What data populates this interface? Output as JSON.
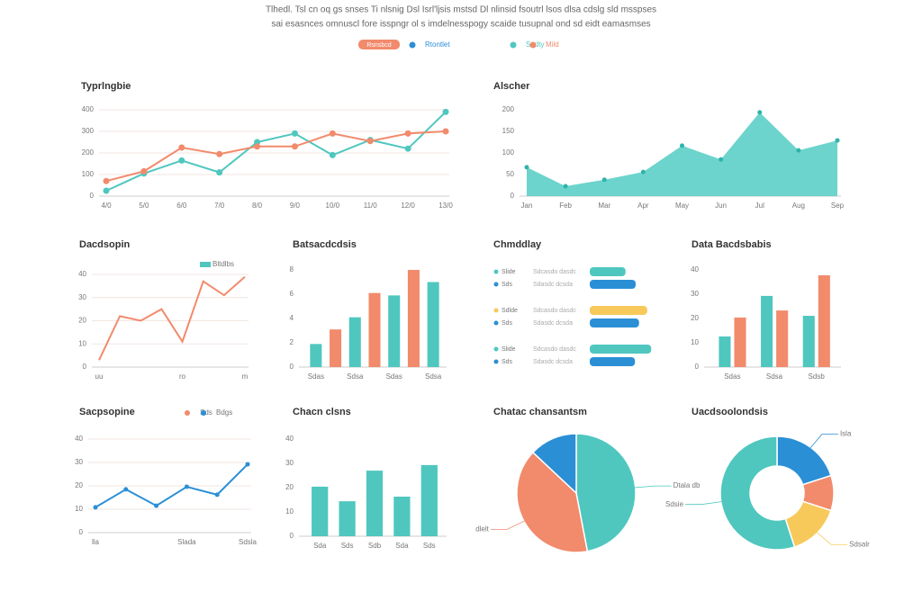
{
  "header": {
    "lines": [
      "Tlhedl. Tsl cn oq gs snses Ti nlsnig Dsl Isrl'ljsis mstsd Dl nlinsid fsoutrl lsos dlsa cdslg sld msspses",
      "sai esasnces omnuscl fore isspngr ol s imdelnesspogy scaide tusupnal ond sd eidt eamasmses"
    ],
    "legend": [
      {
        "label": "Rsnsbcd",
        "color": "#f28a6c",
        "pill": true
      },
      {
        "label": "Rtontlet",
        "color": "#2b8fd6"
      },
      {
        "label": "Sadty",
        "color": "#4fc7bf"
      },
      {
        "label": "Mild",
        "color": "#f28a6c"
      }
    ]
  },
  "chart_data": [
    {
      "type": "line",
      "title": "Typrlngbie",
      "categories": [
        "4/0",
        "5/0",
        "6/0",
        "7/0",
        "8/0",
        "9/0",
        "10/0",
        "11/0",
        "12/0",
        "13/0"
      ],
      "series": [
        {
          "color": "#4fc7bf",
          "values": [
            25,
            105,
            165,
            110,
            250,
            290,
            190,
            260,
            220,
            390
          ]
        },
        {
          "color": "#f28a6c",
          "values": [
            70,
            115,
            225,
            195,
            230,
            230,
            290,
            255,
            290,
            300
          ]
        }
      ],
      "ylim": [
        0,
        400
      ],
      "yticks": [
        0,
        100,
        200,
        300,
        400
      ],
      "grid": true
    },
    {
      "type": "area",
      "title": "Alscher",
      "categories": [
        "Jan",
        "Feb",
        "Mar",
        "Apr",
        "May",
        "Jun",
        "Jul",
        "Aug",
        "Sep"
      ],
      "values": [
        67,
        23,
        38,
        56,
        117,
        85,
        194,
        106,
        129
      ],
      "color": "#5ccfc6",
      "ylim": [
        0,
        200
      ],
      "yticks": [
        0,
        50,
        100,
        150,
        200
      ],
      "grid": false
    },
    {
      "type": "line",
      "title": "Dacdsopin",
      "categories": [
        "uu",
        null,
        null,
        null,
        "ro",
        null,
        null,
        "m"
      ],
      "series": [
        {
          "color": "#f28a6c",
          "values": [
            3,
            22,
            20,
            25,
            11,
            37,
            31,
            39
          ]
        }
      ],
      "legend": [
        {
          "label": "Bltdlbs",
          "color": "#4fc7bf"
        }
      ],
      "ylim": [
        0,
        40
      ],
      "yticks": [
        0,
        10,
        20,
        30,
        40
      ],
      "grid": true
    },
    {
      "type": "bar",
      "title": "Batsacdcdsis",
      "categories": [
        "Sdas",
        null,
        "Sdsa",
        null,
        "Sdas",
        null,
        "Sdsa"
      ],
      "values": [
        1.9,
        3.1,
        4.1,
        6.1,
        5.9,
        8,
        7
      ],
      "colors": [
        "#4fc7bf",
        "#f28a6c",
        "#4fc7bf",
        "#f28a6c",
        "#4fc7bf",
        "#f28a6c",
        "#4fc7bf"
      ],
      "ylim": [
        0,
        8
      ],
      "yticks": [
        0,
        2,
        4,
        6,
        8
      ],
      "grid": false
    },
    {
      "type": "hbar",
      "title": "Chmddlay",
      "categories": [
        "Slide",
        "Sds",
        "Sdlde",
        "Sds",
        "Slide",
        "Sds"
      ],
      "descriptions": [
        "Sdcasdo dasdc",
        "Sdasdc dcsda",
        "Sdcasdo dasdc",
        "Sdasdc dcsda",
        "Sdcasdo dasdc",
        "Sdasdc dcsda"
      ],
      "values": [
        53,
        68,
        85,
        73,
        91,
        67
      ],
      "colors": [
        "#4fc7bf",
        "#2b8fd6",
        "#f7c95a",
        "#2b8fd6",
        "#4fc7bf",
        "#2b8fd6"
      ],
      "xlim": [
        0,
        100
      ]
    },
    {
      "type": "bar",
      "title": "Data Bacdsbabis",
      "categories": [
        "Sdas",
        "Sdsa",
        "Sdsb"
      ],
      "series": [
        {
          "color": "#4fc7bf",
          "values": [
            12.6,
            29.3,
            21.1
          ]
        },
        {
          "color": "#f28a6c",
          "values": [
            20.4,
            23.3,
            37.8
          ]
        }
      ],
      "ylim": [
        0,
        40
      ],
      "yticks": [
        0,
        10,
        20,
        30,
        40
      ],
      "grid": false
    },
    {
      "type": "line",
      "title": "Sacpsopine",
      "categories": [
        "lla",
        null,
        null,
        "Slada",
        null,
        "Sdsla"
      ],
      "series": [
        {
          "color": "#2b8fd6",
          "values": [
            10.8,
            18.5,
            11.5,
            19.6,
            16.2,
            29.2
          ]
        }
      ],
      "legend": [
        {
          "label": "Sds",
          "color": "#f28a6c"
        },
        {
          "label": "Bdgs",
          "color": "#2b8fd6"
        }
      ],
      "ylim": [
        0,
        40
      ],
      "yticks": [
        0,
        10,
        20,
        30,
        40
      ],
      "grid": true
    },
    {
      "type": "bar",
      "title": "Chacn clsns",
      "categories": [
        "Sda",
        "Sds",
        "Sdb",
        "Sda",
        "Sds"
      ],
      "values": [
        20.4,
        14.4,
        27,
        16.3,
        29.3
      ],
      "color": "#4fc7bf",
      "ylim": [
        0,
        40
      ],
      "yticks": [
        0,
        10,
        20,
        30,
        40
      ],
      "grid": false
    },
    {
      "type": "pie",
      "title": "Chatac chansantsm",
      "categories": [
        "Dtala db",
        "dlelt",
        null
      ],
      "values": [
        47,
        40,
        13
      ],
      "colors": [
        "#4fc7bf",
        "#f28a6c",
        "#2b8fd6"
      ]
    },
    {
      "type": "donut",
      "title": "Uacdsoolondsis",
      "categories": [
        "Isla",
        null,
        "Sdsalr",
        "Sdsie"
      ],
      "values": [
        20,
        10,
        15,
        55
      ],
      "colors": [
        "#2b8fd6",
        "#f28a6c",
        "#f7c95a",
        "#4fc7bf"
      ]
    }
  ]
}
